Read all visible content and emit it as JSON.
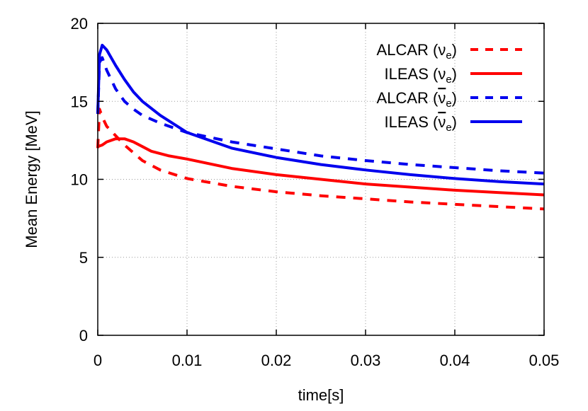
{
  "chart_data": {
    "type": "line",
    "xlabel": "time[s]",
    "ylabel": "Mean Energy [MeV]",
    "xlim": [
      0,
      0.05
    ],
    "ylim": [
      0,
      20
    ],
    "xticks": [
      0,
      0.01,
      0.02,
      0.03,
      0.04,
      0.05
    ],
    "xtick_labels": [
      "0",
      "0.01",
      "0.02",
      "0.03",
      "0.04",
      "0.05"
    ],
    "yticks": [
      0,
      5,
      10,
      15,
      20
    ],
    "ytick_labels": [
      "0",
      "5",
      "10",
      "15",
      "20"
    ],
    "grid": true,
    "legend_position": "top-right",
    "series": [
      {
        "name": "ALCAR (ν_e)",
        "legend_base": "ALCAR (",
        "legend_sym": "ν",
        "legend_sub": "e",
        "legend_bar": false,
        "color": "#ff0000",
        "dash": true,
        "points": [
          [
            0,
            12.0
          ],
          [
            0.0002,
            14.5
          ],
          [
            0.0005,
            14.0
          ],
          [
            0.001,
            13.4
          ],
          [
            0.002,
            12.8
          ],
          [
            0.003,
            12.2
          ],
          [
            0.004,
            11.7
          ],
          [
            0.005,
            11.2
          ],
          [
            0.007,
            10.6
          ],
          [
            0.01,
            10.05
          ],
          [
            0.015,
            9.55
          ],
          [
            0.02,
            9.2
          ],
          [
            0.025,
            8.95
          ],
          [
            0.03,
            8.75
          ],
          [
            0.035,
            8.55
          ],
          [
            0.04,
            8.4
          ],
          [
            0.045,
            8.25
          ],
          [
            0.05,
            8.1
          ]
        ]
      },
      {
        "name": "ILEAS (ν_e)",
        "legend_base": "ILEAS (",
        "legend_sym": "ν",
        "legend_sub": "e",
        "legend_bar": false,
        "color": "#ff0000",
        "dash": false,
        "points": [
          [
            0,
            12.1
          ],
          [
            0.0005,
            12.2
          ],
          [
            0.001,
            12.4
          ],
          [
            0.002,
            12.6
          ],
          [
            0.003,
            12.6
          ],
          [
            0.004,
            12.4
          ],
          [
            0.005,
            12.1
          ],
          [
            0.006,
            11.8
          ],
          [
            0.008,
            11.5
          ],
          [
            0.01,
            11.3
          ],
          [
            0.015,
            10.7
          ],
          [
            0.02,
            10.3
          ],
          [
            0.025,
            10.0
          ],
          [
            0.03,
            9.7
          ],
          [
            0.035,
            9.5
          ],
          [
            0.04,
            9.3
          ],
          [
            0.045,
            9.15
          ],
          [
            0.05,
            9.0
          ]
        ]
      },
      {
        "name": "ALCAR (ν̄_e)",
        "legend_base": "ALCAR (",
        "legend_sym": "ν",
        "legend_sub": "e",
        "legend_bar": true,
        "color": "#0000ee",
        "dash": true,
        "points": [
          [
            0,
            14.2
          ],
          [
            0.0002,
            17.5
          ],
          [
            0.0005,
            17.8
          ],
          [
            0.001,
            17.0
          ],
          [
            0.002,
            15.8
          ],
          [
            0.003,
            15.0
          ],
          [
            0.004,
            14.5
          ],
          [
            0.005,
            14.1
          ],
          [
            0.007,
            13.6
          ],
          [
            0.01,
            13.0
          ],
          [
            0.015,
            12.4
          ],
          [
            0.02,
            11.95
          ],
          [
            0.025,
            11.5
          ],
          [
            0.03,
            11.2
          ],
          [
            0.035,
            10.95
          ],
          [
            0.04,
            10.75
          ],
          [
            0.045,
            10.55
          ],
          [
            0.05,
            10.4
          ]
        ]
      },
      {
        "name": "ILEAS (ν̄_e)",
        "legend_base": "ILEAS (",
        "legend_sym": "ν",
        "legend_sub": "e",
        "legend_bar": true,
        "color": "#0000ee",
        "dash": false,
        "points": [
          [
            0,
            14.2
          ],
          [
            0.0002,
            18.0
          ],
          [
            0.0005,
            18.6
          ],
          [
            0.001,
            18.3
          ],
          [
            0.002,
            17.3
          ],
          [
            0.003,
            16.4
          ],
          [
            0.004,
            15.6
          ],
          [
            0.005,
            15.0
          ],
          [
            0.007,
            14.1
          ],
          [
            0.01,
            13.0
          ],
          [
            0.015,
            12.0
          ],
          [
            0.02,
            11.4
          ],
          [
            0.025,
            10.95
          ],
          [
            0.03,
            10.6
          ],
          [
            0.035,
            10.3
          ],
          [
            0.04,
            10.05
          ],
          [
            0.045,
            9.85
          ],
          [
            0.05,
            9.7
          ]
        ]
      }
    ]
  }
}
